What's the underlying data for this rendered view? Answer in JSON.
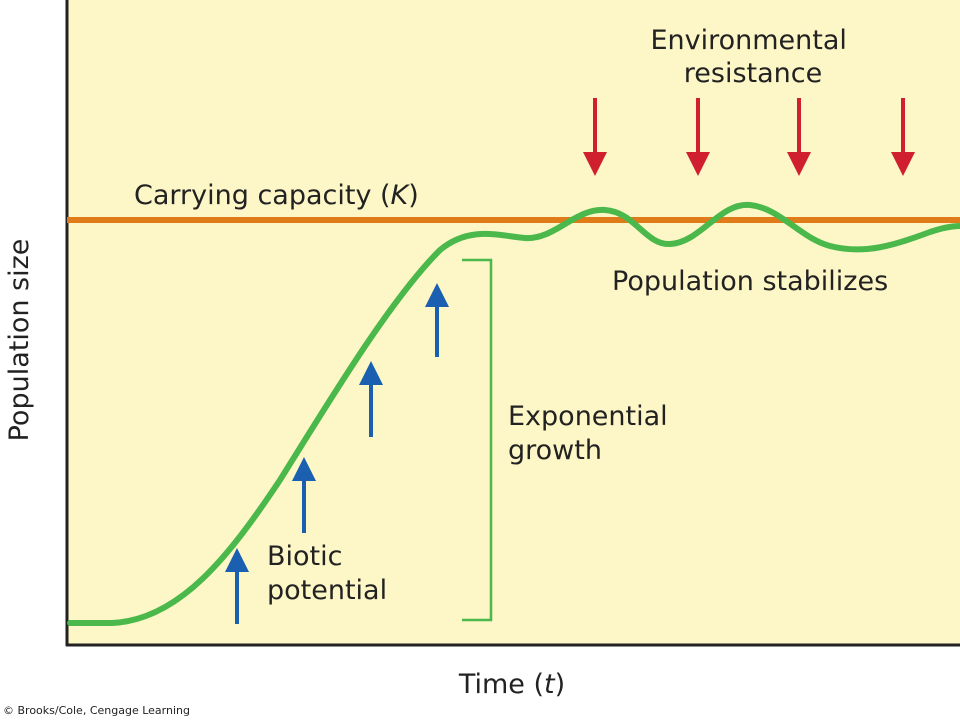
{
  "labels": {
    "carrying_capacity": "Carrying capacity (",
    "carrying_capacity_symbol": "K",
    "carrying_capacity_close": ")",
    "environmental_line1": "Environmental",
    "environmental_line2": "resistance",
    "population_stabilizes": "Population stabilizes",
    "exponential_line1": "Exponential",
    "exponential_line2": "growth",
    "biotic_line1": "Biotic",
    "biotic_line2": "potential",
    "y_axis": "Population size",
    "x_axis": "Time (",
    "x_axis_symbol": "t",
    "x_axis_close": ")",
    "copyright": "© Brooks/Cole, Cengage Learning"
  },
  "colors": {
    "background": "#fdf6c6",
    "carrying_line": "#e07b1a",
    "curve": "#4ab84a",
    "up_arrows": "#1a5fb0",
    "down_arrows": "#d01f2e",
    "bracket": "#4ab84a",
    "axis": "#222222",
    "text": "#222222"
  }
}
